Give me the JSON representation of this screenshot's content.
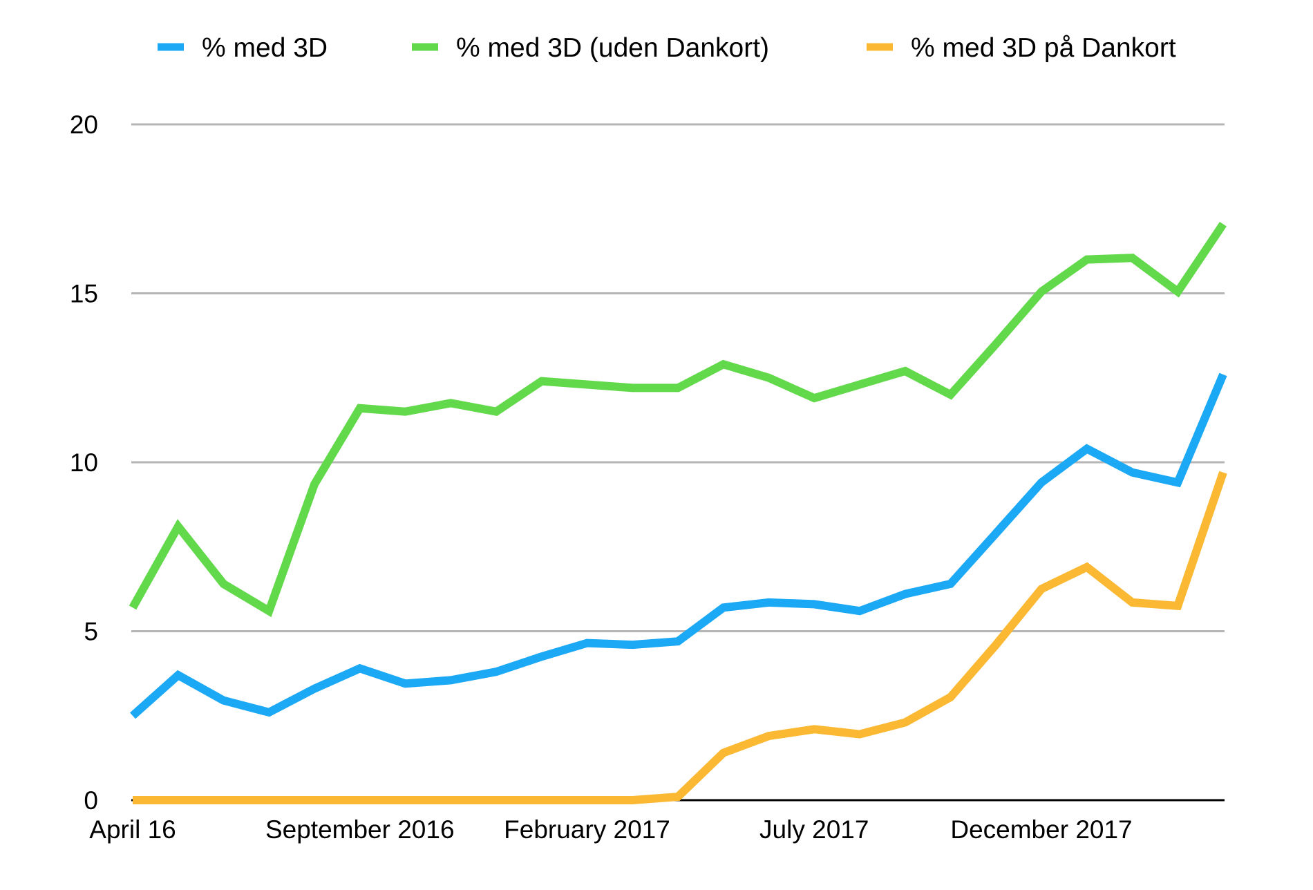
{
  "chart_data": {
    "type": "line",
    "title": "",
    "xlabel": "",
    "ylabel": "",
    "ylim": [
      0,
      20
    ],
    "y_ticks": [
      "0",
      "5",
      "10",
      "15",
      "20"
    ],
    "y_tick_values": [
      0,
      5,
      10,
      15,
      20
    ],
    "x_tick_labels": [
      {
        "label": "April 16",
        "index": 0
      },
      {
        "label": "September 2016",
        "index": 5
      },
      {
        "label": "February 2017",
        "index": 10
      },
      {
        "label": "July 2017",
        "index": 15
      },
      {
        "label": "December 2017",
        "index": 20
      }
    ],
    "grid": true,
    "legend_position": "top",
    "series": [
      {
        "name": "% med 3D",
        "color": "#1ba8f4",
        "values": [
          2.5,
          3.7,
          2.95,
          2.6,
          3.3,
          3.9,
          3.45,
          3.55,
          3.8,
          4.25,
          4.65,
          4.6,
          4.7,
          5.7,
          5.85,
          5.8,
          5.6,
          6.1,
          6.4,
          7.9,
          9.4,
          10.4,
          9.7,
          9.4,
          12.6
        ]
      },
      {
        "name": "% med 3D (uden Dankort)",
        "color": "#62d94a",
        "values": [
          5.7,
          8.1,
          6.4,
          5.6,
          9.35,
          11.6,
          11.5,
          11.75,
          11.5,
          12.4,
          12.3,
          12.2,
          12.2,
          12.9,
          12.5,
          11.9,
          12.3,
          12.7,
          12.0,
          13.5,
          15.05,
          16.0,
          16.05,
          15.05,
          17.05
        ]
      },
      {
        "name": "% med 3D på Dankort",
        "color": "#fbb832",
        "values": [
          0,
          0,
          0,
          0,
          0,
          0,
          0,
          0,
          0,
          0,
          0,
          0,
          0.1,
          1.4,
          1.9,
          2.1,
          1.95,
          2.3,
          3.05,
          4.6,
          6.25,
          6.9,
          5.85,
          5.75,
          9.7
        ]
      }
    ]
  }
}
